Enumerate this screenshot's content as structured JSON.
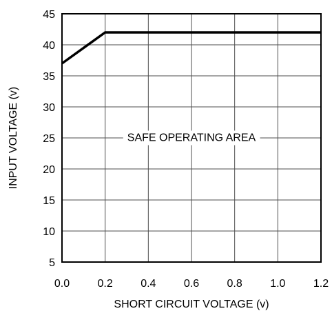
{
  "chart_data": {
    "type": "line",
    "title": "",
    "xlabel": "SHORT CIRCUIT VOLTAGE (v)",
    "ylabel": "INPUT VOLTAGE (v)",
    "xlim": [
      0.0,
      1.2
    ],
    "ylim": [
      5,
      45
    ],
    "x_ticks": [
      "0.0",
      "0.2",
      "0.4",
      "0.6",
      "0.8",
      "1.0",
      "1.2"
    ],
    "y_ticks": [
      "5",
      "10",
      "15",
      "20",
      "25",
      "30",
      "35",
      "40",
      "45"
    ],
    "grid": true,
    "legend": "none",
    "annotation": {
      "text": "SAFE OPERATING AREA",
      "x": 0.6,
      "y": 24.5
    },
    "series": [
      {
        "x": [
          0.0,
          0.2,
          1.2
        ],
        "y": [
          37,
          42,
          42
        ]
      }
    ],
    "colors": {
      "line": "#000000",
      "grid": "#4d4d4d",
      "axis": "#000000"
    }
  }
}
